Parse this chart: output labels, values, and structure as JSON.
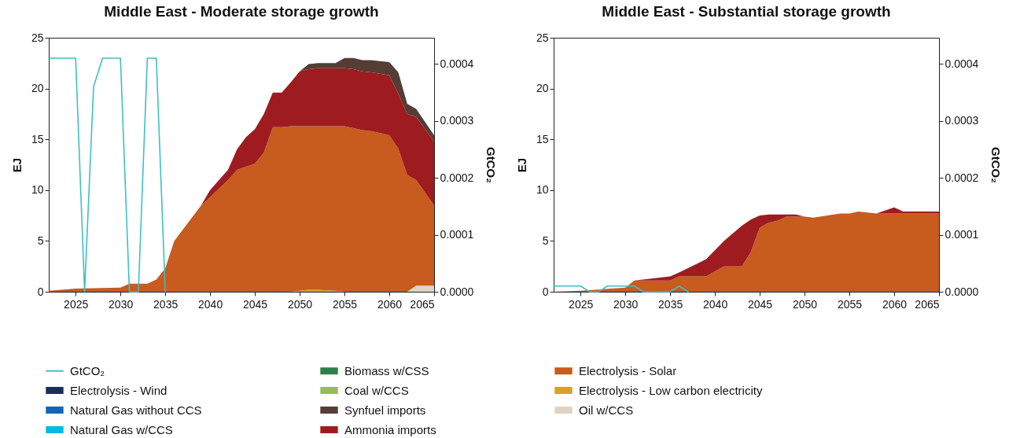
{
  "chart_data": [
    {
      "type": "area",
      "stacked": true,
      "title": "Middle East - Moderate storage growth",
      "ylabel": "EJ",
      "y2label": "GtCO₂",
      "legend": "bottom",
      "grid": false,
      "xlim": [
        2022,
        2065
      ],
      "xticks": [
        2025,
        2030,
        2035,
        2040,
        2045,
        2050,
        2055,
        2060,
        2065
      ],
      "ylim": [
        0,
        25
      ],
      "yticks": [
        0,
        5,
        10,
        15,
        20,
        25
      ],
      "y2lim": [
        0,
        0.000446
      ],
      "y2ticks": [
        {
          "value": 0,
          "label": "0.0000"
        },
        {
          "value": 0.0001,
          "label": "0.0001"
        },
        {
          "value": 0.0002,
          "label": "0.0002"
        },
        {
          "value": 0.0003,
          "label": "0.0003"
        },
        {
          "value": 0.0004,
          "label": "0.0004"
        }
      ],
      "x": [
        2022,
        2025,
        2027,
        2030,
        2031,
        2033,
        2034,
        2035,
        2036,
        2039,
        2040,
        2042,
        2043,
        2044,
        2045,
        2046,
        2047,
        2048,
        2049,
        2050,
        2051,
        2052,
        2054,
        2055,
        2056,
        2057,
        2058,
        2060,
        2061,
        2062,
        2063,
        2065
      ],
      "series": [
        {
          "name": "Oil w/CCS",
          "color": "#ddd5c2",
          "values": [
            null,
            null,
            null,
            null,
            null,
            null,
            null,
            null,
            null,
            null,
            null,
            null,
            null,
            null,
            null,
            null,
            null,
            null,
            null,
            null,
            null,
            null,
            null,
            null,
            null,
            null,
            null,
            null,
            null,
            0,
            0.6,
            0.6
          ]
        },
        {
          "name": "Electrolysis - Low carbon electricity",
          "color": "#dba02a",
          "values": [
            null,
            null,
            null,
            null,
            null,
            null,
            null,
            null,
            null,
            null,
            null,
            null,
            null,
            null,
            null,
            null,
            null,
            null,
            0,
            0.1,
            0.2,
            0.2,
            0.1,
            0,
            null,
            null,
            null,
            null,
            null,
            null,
            null,
            null
          ]
        },
        {
          "name": "Electrolysis - Solar",
          "color": "#c85b1e",
          "values": [
            0.1,
            0.3,
            0.35,
            0.4,
            0.8,
            0.8,
            1.2,
            2.3,
            5.0,
            8.5,
            9.3,
            11.0,
            12.0,
            12.3,
            12.6,
            13.7,
            16.2,
            16.2,
            16.3,
            16.2,
            16.1,
            16.1,
            16.2,
            16.3,
            16.1,
            15.9,
            15.8,
            15.4,
            14.1,
            11.5,
            10.4,
            7.9
          ]
        },
        {
          "name": "Ammonia imports",
          "color": "#9e1c20",
          "values": [
            null,
            null,
            null,
            null,
            null,
            null,
            null,
            null,
            null,
            0,
            0.7,
            1.0,
            2.0,
            2.9,
            3.4,
            3.8,
            3.4,
            3.4,
            4.3,
            5.4,
            5.6,
            5.7,
            5.7,
            5.7,
            5.8,
            5.8,
            5.8,
            5.9,
            5.4,
            6.0,
            6.2,
            6.3
          ]
        },
        {
          "name": "Synfuel imports",
          "color": "#553c35",
          "values": [
            null,
            null,
            null,
            null,
            null,
            null,
            null,
            null,
            null,
            null,
            null,
            null,
            null,
            null,
            null,
            null,
            null,
            null,
            null,
            0,
            0.5,
            0.5,
            0.5,
            1.0,
            1.1,
            1.1,
            1.2,
            1.3,
            2.1,
            1.0,
            0.8,
            0.6
          ]
        },
        {
          "name": "Coal w/CCS",
          "color": "#97bb55",
          "values": [
            null,
            null,
            null,
            null,
            null,
            null,
            null,
            null,
            null,
            null,
            null,
            null,
            null,
            null,
            null,
            null,
            null,
            null,
            null,
            null,
            null,
            null,
            null,
            null,
            null,
            null,
            null,
            null,
            null,
            null,
            null,
            null
          ]
        },
        {
          "name": "Biomass w/CSS",
          "color": "#2e8048",
          "values": [
            null,
            null,
            null,
            null,
            null,
            null,
            null,
            null,
            null,
            null,
            null,
            null,
            null,
            null,
            null,
            null,
            null,
            null,
            null,
            null,
            null,
            null,
            null,
            null,
            null,
            null,
            null,
            null,
            null,
            null,
            null,
            null
          ]
        },
        {
          "name": "Natural Gas w/CCS",
          "color": "#00b9e4",
          "values": [
            null,
            null,
            null,
            null,
            null,
            null,
            null,
            null,
            null,
            null,
            null,
            null,
            null,
            null,
            null,
            null,
            null,
            null,
            null,
            null,
            null,
            null,
            null,
            null,
            null,
            null,
            null,
            null,
            null,
            null,
            null,
            null
          ]
        },
        {
          "name": "Natural Gas without CCS",
          "color": "#0e67b0",
          "values": [
            null,
            null,
            null,
            null,
            null,
            null,
            null,
            null,
            null,
            null,
            null,
            null,
            null,
            null,
            null,
            null,
            null,
            null,
            null,
            null,
            null,
            null,
            null,
            null,
            null,
            null,
            null,
            null,
            null,
            null,
            null,
            null
          ]
        },
        {
          "name": "Electrolysis - Wind",
          "color": "#1a2d5a",
          "values": [
            null,
            null,
            null,
            null,
            null,
            null,
            null,
            null,
            null,
            null,
            null,
            null,
            null,
            null,
            null,
            null,
            null,
            null,
            null,
            null,
            null,
            null,
            null,
            null,
            null,
            null,
            null,
            null,
            null,
            null,
            null,
            null
          ]
        },
        {
          "name": "GtCO₂",
          "type": "line",
          "axis": "y2",
          "color": "#3fc0c4",
          "x": [
            2022,
            2025,
            2026,
            2027,
            2028,
            2030,
            2031,
            2032,
            2033,
            2034,
            2035
          ],
          "values": [
            0.00041,
            0.00041,
            0,
            0.00036,
            0.00041,
            0.00041,
            0,
            0,
            0.00041,
            0.00041,
            0
          ]
        }
      ]
    },
    {
      "type": "area",
      "stacked": true,
      "title": "Middle East - Substantial storage growth",
      "ylabel": "EJ",
      "y2label": "GtCO₂",
      "grid": false,
      "xlim": [
        2022,
        2065
      ],
      "xticks": [
        2025,
        2030,
        2035,
        2040,
        2045,
        2050,
        2055,
        2060,
        2065
      ],
      "ylim": [
        0,
        25
      ],
      "yticks": [
        0,
        5,
        10,
        15,
        20,
        25
      ],
      "y2lim": [
        0,
        0.000446
      ],
      "y2ticks": [
        {
          "value": 0,
          "label": "0.0000"
        },
        {
          "value": 0.0001,
          "label": "0.0001"
        },
        {
          "value": 0.0002,
          "label": "0.0002"
        },
        {
          "value": 0.0003,
          "label": "0.0003"
        },
        {
          "value": 0.0004,
          "label": "0.0004"
        }
      ],
      "x": [
        2022,
        2025,
        2030,
        2031,
        2035,
        2036,
        2039,
        2041,
        2043,
        2044,
        2045,
        2046,
        2047,
        2048,
        2049,
        2050,
        2051,
        2054,
        2055,
        2056,
        2058,
        2060,
        2061,
        2065
      ],
      "series": [
        {
          "color": "#c85b1e",
          "values": [
            0,
            0.1,
            0.4,
            1.1,
            1.1,
            1.5,
            1.5,
            2.5,
            2.5,
            3.9,
            6.3,
            6.8,
            7.0,
            7.4,
            7.4,
            7.4,
            7.3,
            7.7,
            7.7,
            7.9,
            7.7,
            7.7,
            7.7,
            7.7
          ]
        },
        {
          "color": "#9e1c20",
          "values": [
            0,
            0,
            0,
            0,
            0.4,
            0.4,
            1.7,
            2.5,
            4.0,
            3.2,
            1.2,
            0.8,
            0.6,
            0.2,
            0.2,
            0,
            0,
            0,
            0,
            0,
            0,
            0.6,
            0.2,
            0.2
          ]
        },
        {
          "type": "line",
          "axis": "y2",
          "color": "#3fc0c4",
          "x": [
            2022,
            2025,
            2026,
            2027,
            2028,
            2031,
            2032,
            2035,
            2036,
            2037
          ],
          "values": [
            1e-05,
            1e-05,
            0,
            0,
            1e-05,
            1e-05,
            0,
            0,
            1e-05,
            0
          ]
        }
      ]
    }
  ]
}
